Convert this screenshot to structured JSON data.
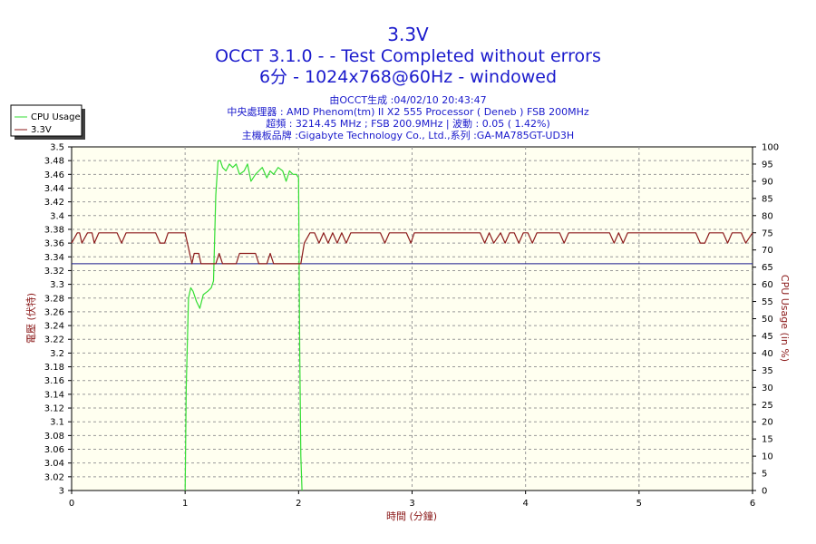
{
  "header": {
    "title": "3.3V",
    "subtitle1": "OCCT 3.1.0 -  - Test Completed without errors",
    "subtitle2": "6分 - 1024x768@60Hz - windowed",
    "info": [
      "由OCCT生成 :04/02/10 20:43:47",
      "中央處理器 : AMD Phenom(tm) II X2 555 Processor ( Deneb ) FSB 200MHz",
      "超頻 : 3214.45 MHz ; FSB 200.9MHz | 波動 : 0.05 ( 1.42%)",
      "主機板品牌 :Gigabyte Technology Co., Ltd.,系列 :GA-MA785GT-UD3H"
    ]
  },
  "colors": {
    "background": "#ffffff",
    "plot_background": "#fffff0",
    "grid": "#999999",
    "title": "#1a1acc",
    "axis_label": "#8b1a1a",
    "cpu_usage": "#33dd33",
    "voltage": "#8b1a1a",
    "reference_line": "#1a1a8c"
  },
  "chart_data": {
    "type": "line",
    "xlabel": "時間 (分鐘)",
    "ylabel_left": "電壓 (伏特)",
    "ylabel_right": "CPU Usage (in %)",
    "xlim": [
      0,
      6
    ],
    "x_ticks": [
      0,
      1,
      2,
      3,
      4,
      5,
      6
    ],
    "ylim_left": [
      3.0,
      3.5
    ],
    "y_ticks_left": [
      "3",
      "3.02",
      "3.04",
      "3.06",
      "3.08",
      "3.1",
      "3.12",
      "3.14",
      "3.16",
      "3.18",
      "3.2",
      "3.22",
      "3.24",
      "3.26",
      "3.28",
      "3.3",
      "3.32",
      "3.34",
      "3.36",
      "3.38",
      "3.4",
      "3.42",
      "3.44",
      "3.46",
      "3.48",
      "3.5"
    ],
    "ylim_right": [
      0,
      100
    ],
    "y_ticks_right": [
      "0",
      "5",
      "10",
      "15",
      "20",
      "25",
      "30",
      "35",
      "40",
      "45",
      "50",
      "55",
      "60",
      "65",
      "70",
      "75",
      "80",
      "85",
      "90",
      "95",
      "100"
    ],
    "grid": true,
    "legend": {
      "placement": "top-left",
      "entries": [
        "CPU Usage",
        "3.3V"
      ]
    },
    "reference_value": 3.33,
    "series": [
      {
        "name": "CPU Usage",
        "axis": "right",
        "color": "#33dd33",
        "x": [
          1.0,
          1.01,
          1.03,
          1.05,
          1.07,
          1.1,
          1.13,
          1.16,
          1.2,
          1.23,
          1.25,
          1.27,
          1.29,
          1.31,
          1.33,
          1.36,
          1.39,
          1.42,
          1.45,
          1.48,
          1.52,
          1.55,
          1.58,
          1.62,
          1.65,
          1.68,
          1.72,
          1.75,
          1.78,
          1.82,
          1.86,
          1.89,
          1.92,
          1.95,
          1.98,
          2.0,
          2.01,
          2.02,
          2.03
        ],
        "values": [
          0,
          30,
          56,
          59,
          58,
          55,
          53,
          57,
          58,
          59,
          61,
          86,
          96,
          96,
          94,
          93,
          95,
          94,
          95,
          92,
          93,
          95,
          90,
          92,
          93,
          94,
          91,
          93,
          92,
          94,
          93,
          90,
          93,
          92,
          92,
          91,
          40,
          10,
          0
        ]
      },
      {
        "name": "3.3V",
        "axis": "left",
        "color": "#8b1a1a",
        "x": [
          0,
          0.05,
          0.07,
          0.09,
          0.14,
          0.18,
          0.2,
          0.24,
          0.4,
          0.44,
          0.48,
          0.52,
          0.55,
          0.74,
          0.78,
          0.82,
          0.85,
          1.0,
          1.02,
          1.04,
          1.06,
          1.08,
          1.12,
          1.14,
          1.16,
          1.18,
          1.24,
          1.27,
          1.3,
          1.33,
          1.38,
          1.42,
          1.45,
          1.48,
          1.62,
          1.65,
          1.68,
          1.72,
          1.75,
          1.78,
          1.92,
          1.95,
          1.98,
          2.02,
          2.05,
          2.1,
          2.14,
          2.18,
          2.22,
          2.26,
          2.3,
          2.34,
          2.38,
          2.42,
          2.46,
          2.5,
          2.54,
          2.6,
          2.66,
          2.72,
          2.76,
          2.8,
          2.85,
          2.95,
          2.99,
          3.02,
          3.06,
          3.2,
          3.4,
          3.6,
          3.64,
          3.68,
          3.72,
          3.78,
          3.82,
          3.86,
          3.9,
          3.94,
          3.98,
          4.02,
          4.06,
          4.1,
          4.14,
          4.2,
          4.3,
          4.34,
          4.38,
          4.42,
          4.6,
          4.74,
          4.78,
          4.82,
          4.86,
          4.9,
          4.95,
          5.0,
          5.2,
          5.5,
          5.54,
          5.58,
          5.62,
          5.74,
          5.78,
          5.82,
          5.86,
          5.9,
          5.94,
          6.0
        ],
        "values": [
          3.36,
          3.375,
          3.375,
          3.36,
          3.375,
          3.375,
          3.36,
          3.375,
          3.375,
          3.36,
          3.375,
          3.375,
          3.375,
          3.375,
          3.36,
          3.36,
          3.375,
          3.375,
          3.36,
          3.345,
          3.33,
          3.345,
          3.345,
          3.33,
          3.33,
          3.33,
          3.33,
          3.33,
          3.345,
          3.33,
          3.33,
          3.33,
          3.33,
          3.345,
          3.345,
          3.33,
          3.33,
          3.33,
          3.345,
          3.33,
          3.33,
          3.33,
          3.33,
          3.33,
          3.36,
          3.375,
          3.375,
          3.36,
          3.375,
          3.36,
          3.375,
          3.36,
          3.375,
          3.36,
          3.375,
          3.375,
          3.375,
          3.375,
          3.375,
          3.375,
          3.36,
          3.375,
          3.375,
          3.375,
          3.36,
          3.375,
          3.375,
          3.375,
          3.375,
          3.375,
          3.36,
          3.375,
          3.36,
          3.375,
          3.36,
          3.375,
          3.375,
          3.36,
          3.375,
          3.375,
          3.36,
          3.375,
          3.375,
          3.375,
          3.375,
          3.36,
          3.375,
          3.375,
          3.375,
          3.375,
          3.36,
          3.375,
          3.36,
          3.375,
          3.375,
          3.375,
          3.375,
          3.375,
          3.36,
          3.36,
          3.375,
          3.375,
          3.36,
          3.375,
          3.375,
          3.375,
          3.36,
          3.375
        ]
      }
    ]
  }
}
